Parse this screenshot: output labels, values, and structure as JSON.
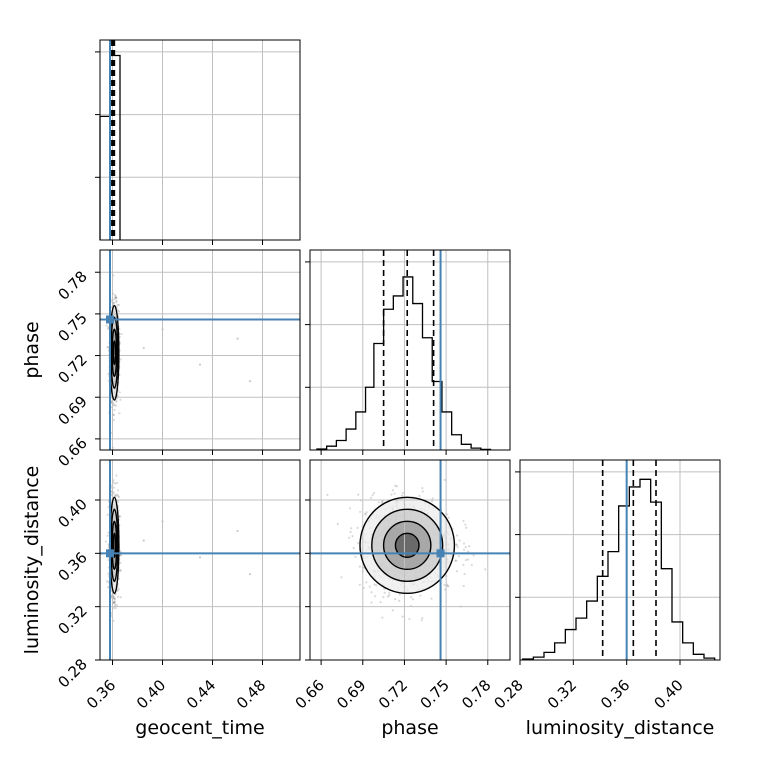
{
  "chart_data": {
    "type": "corner",
    "parameters": [
      "geocent_time",
      "phase",
      "luminosity_distance"
    ],
    "labels": {
      "geocent_time": "geocent_time",
      "phase": "phase",
      "luminosity_distance": "luminosity_distance"
    },
    "ranges": {
      "geocent_time": [
        0.35,
        0.51
      ],
      "phase": [
        0.652,
        0.796
      ],
      "luminosity_distance": [
        0.28,
        0.43
      ]
    },
    "ticks": {
      "geocent_time": [
        0.36,
        0.4,
        0.44,
        0.48
      ],
      "phase": [
        0.66,
        0.69,
        0.72,
        0.75,
        0.78
      ],
      "luminosity_distance": [
        0.28,
        0.32,
        0.36,
        0.4
      ]
    },
    "tick_labels": {
      "geocent_time": [
        "0.36",
        "0.40",
        "0.44",
        "0.48"
      ],
      "phase": [
        "0.66",
        "0.69",
        "0.72",
        "0.75",
        "0.78"
      ],
      "luminosity_distance": [
        "0.28",
        "0.32",
        "0.36",
        "0.40"
      ]
    },
    "truths": {
      "geocent_time": 0.358,
      "phase": 0.746,
      "luminosity_distance": 0.36
    },
    "quantiles": {
      "geocent_time": [
        0.3595,
        0.3605,
        0.3615
      ],
      "phase": [
        0.705,
        0.722,
        0.741
      ],
      "luminosity_distance": [
        0.342,
        0.365,
        0.382
      ]
    },
    "histograms": {
      "geocent_time": {
        "edges": [
          0.35,
          0.358,
          0.366
        ],
        "counts": [
          0.65,
          0.97
        ]
      },
      "phase": {
        "edges": [
          0.657,
          0.664,
          0.671,
          0.678,
          0.685,
          0.692,
          0.698,
          0.705,
          0.712,
          0.719,
          0.726,
          0.733,
          0.74,
          0.747,
          0.754,
          0.761,
          0.768,
          0.775,
          0.782
        ],
        "counts": [
          0.005,
          0.02,
          0.05,
          0.11,
          0.2,
          0.33,
          0.56,
          0.74,
          0.81,
          0.91,
          0.77,
          0.59,
          0.36,
          0.2,
          0.08,
          0.03,
          0.01,
          0.003
        ]
      },
      "luminosity_distance": {
        "edges": [
          0.282,
          0.29,
          0.298,
          0.306,
          0.314,
          0.322,
          0.33,
          0.338,
          0.346,
          0.354,
          0.362,
          0.37,
          0.378,
          0.386,
          0.394,
          0.402,
          0.41,
          0.418,
          0.426
        ],
        "counts": [
          0.005,
          0.015,
          0.04,
          0.09,
          0.16,
          0.22,
          0.31,
          0.44,
          0.57,
          0.81,
          0.91,
          0.95,
          0.83,
          0.48,
          0.2,
          0.09,
          0.03,
          0.01
        ]
      }
    },
    "posterior_2d": {
      "center": {
        "geocent_time": 0.3615,
        "phase": 0.722,
        "luminosity_distance": 0.366
      },
      "spread": {
        "geocent_time": 0.0018,
        "phase": 0.017,
        "luminosity_distance": 0.018
      },
      "contour_levels": [
        "0.5-sigma",
        "1-sigma",
        "1.5-sigma",
        "2-sigma"
      ]
    },
    "grid": true,
    "line_color": "#000000",
    "truth_color": "#4682b4"
  }
}
